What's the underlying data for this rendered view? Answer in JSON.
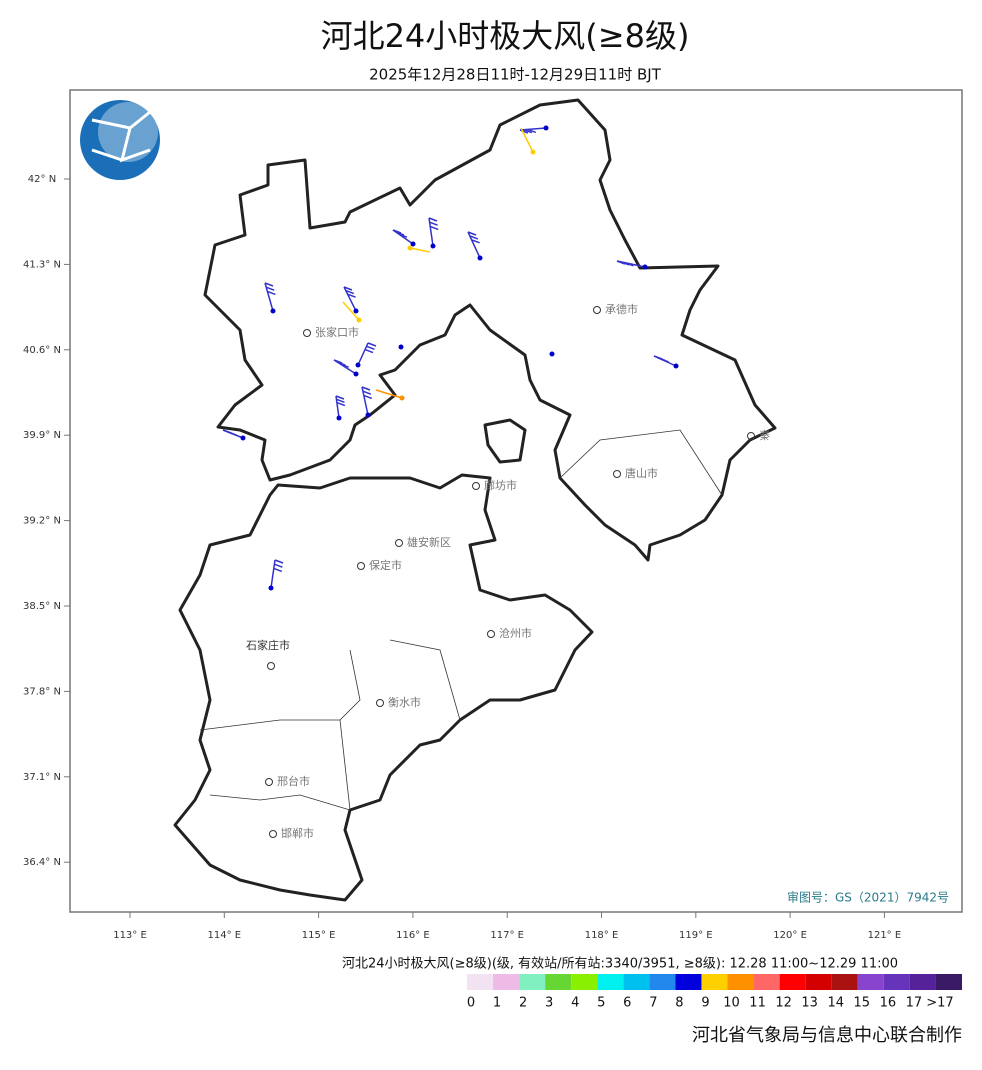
{
  "header": {
    "title": "河北24小时极大风(≥8级)",
    "subtitle": "2025年12月28日11时-12月29日11时 BJT"
  },
  "map": {
    "lat_labels": [
      "42° N",
      "41.3° N",
      "40.6° N",
      "39.9° N",
      "39.2° N",
      "38.5° N",
      "37.8° N",
      "37.1° N",
      "36.4° N"
    ],
    "lon_labels": [
      "113° E",
      "114° E",
      "115° E",
      "116° E",
      "117° E",
      "118° E",
      "119° E",
      "120° E",
      "121° E"
    ],
    "cities": [
      "张家口市",
      "承德市",
      "秦",
      "唐山市",
      "廊坊市",
      "雄安新区",
      "保定市",
      "沧州市",
      "石家庄市",
      "衡水市",
      "邢台市",
      "邯郸市"
    ],
    "approval": "审图号：GS（2021）7942号"
  },
  "legend": {
    "title": "河北24小时极大风(≥8级)(级, 有效站/所有站:3340/3951, ≥8级): 12.28 11:00~12.29 11:00",
    "labels": [
      "0",
      "1",
      "2",
      "3",
      "4",
      "5",
      "6",
      "7",
      "8",
      "9",
      "10",
      "11",
      "12",
      "13",
      "14",
      "15",
      "16",
      "17",
      ">17"
    ],
    "colors": [
      "#f2e2f2",
      "#eebbe6",
      "#80f0c0",
      "#66d633",
      "#88f000",
      "#00f0f0",
      "#00c0f0",
      "#2288ee",
      "#0000dd",
      "#ffd000",
      "#ff9000",
      "#ff6666",
      "#ff0000",
      "#d40000",
      "#aa1111",
      "#8844cc",
      "#6633bb",
      "#552299",
      "#3a1a66"
    ]
  },
  "footer": {
    "credit": "河北省气象局与信息中心联合制作"
  }
}
